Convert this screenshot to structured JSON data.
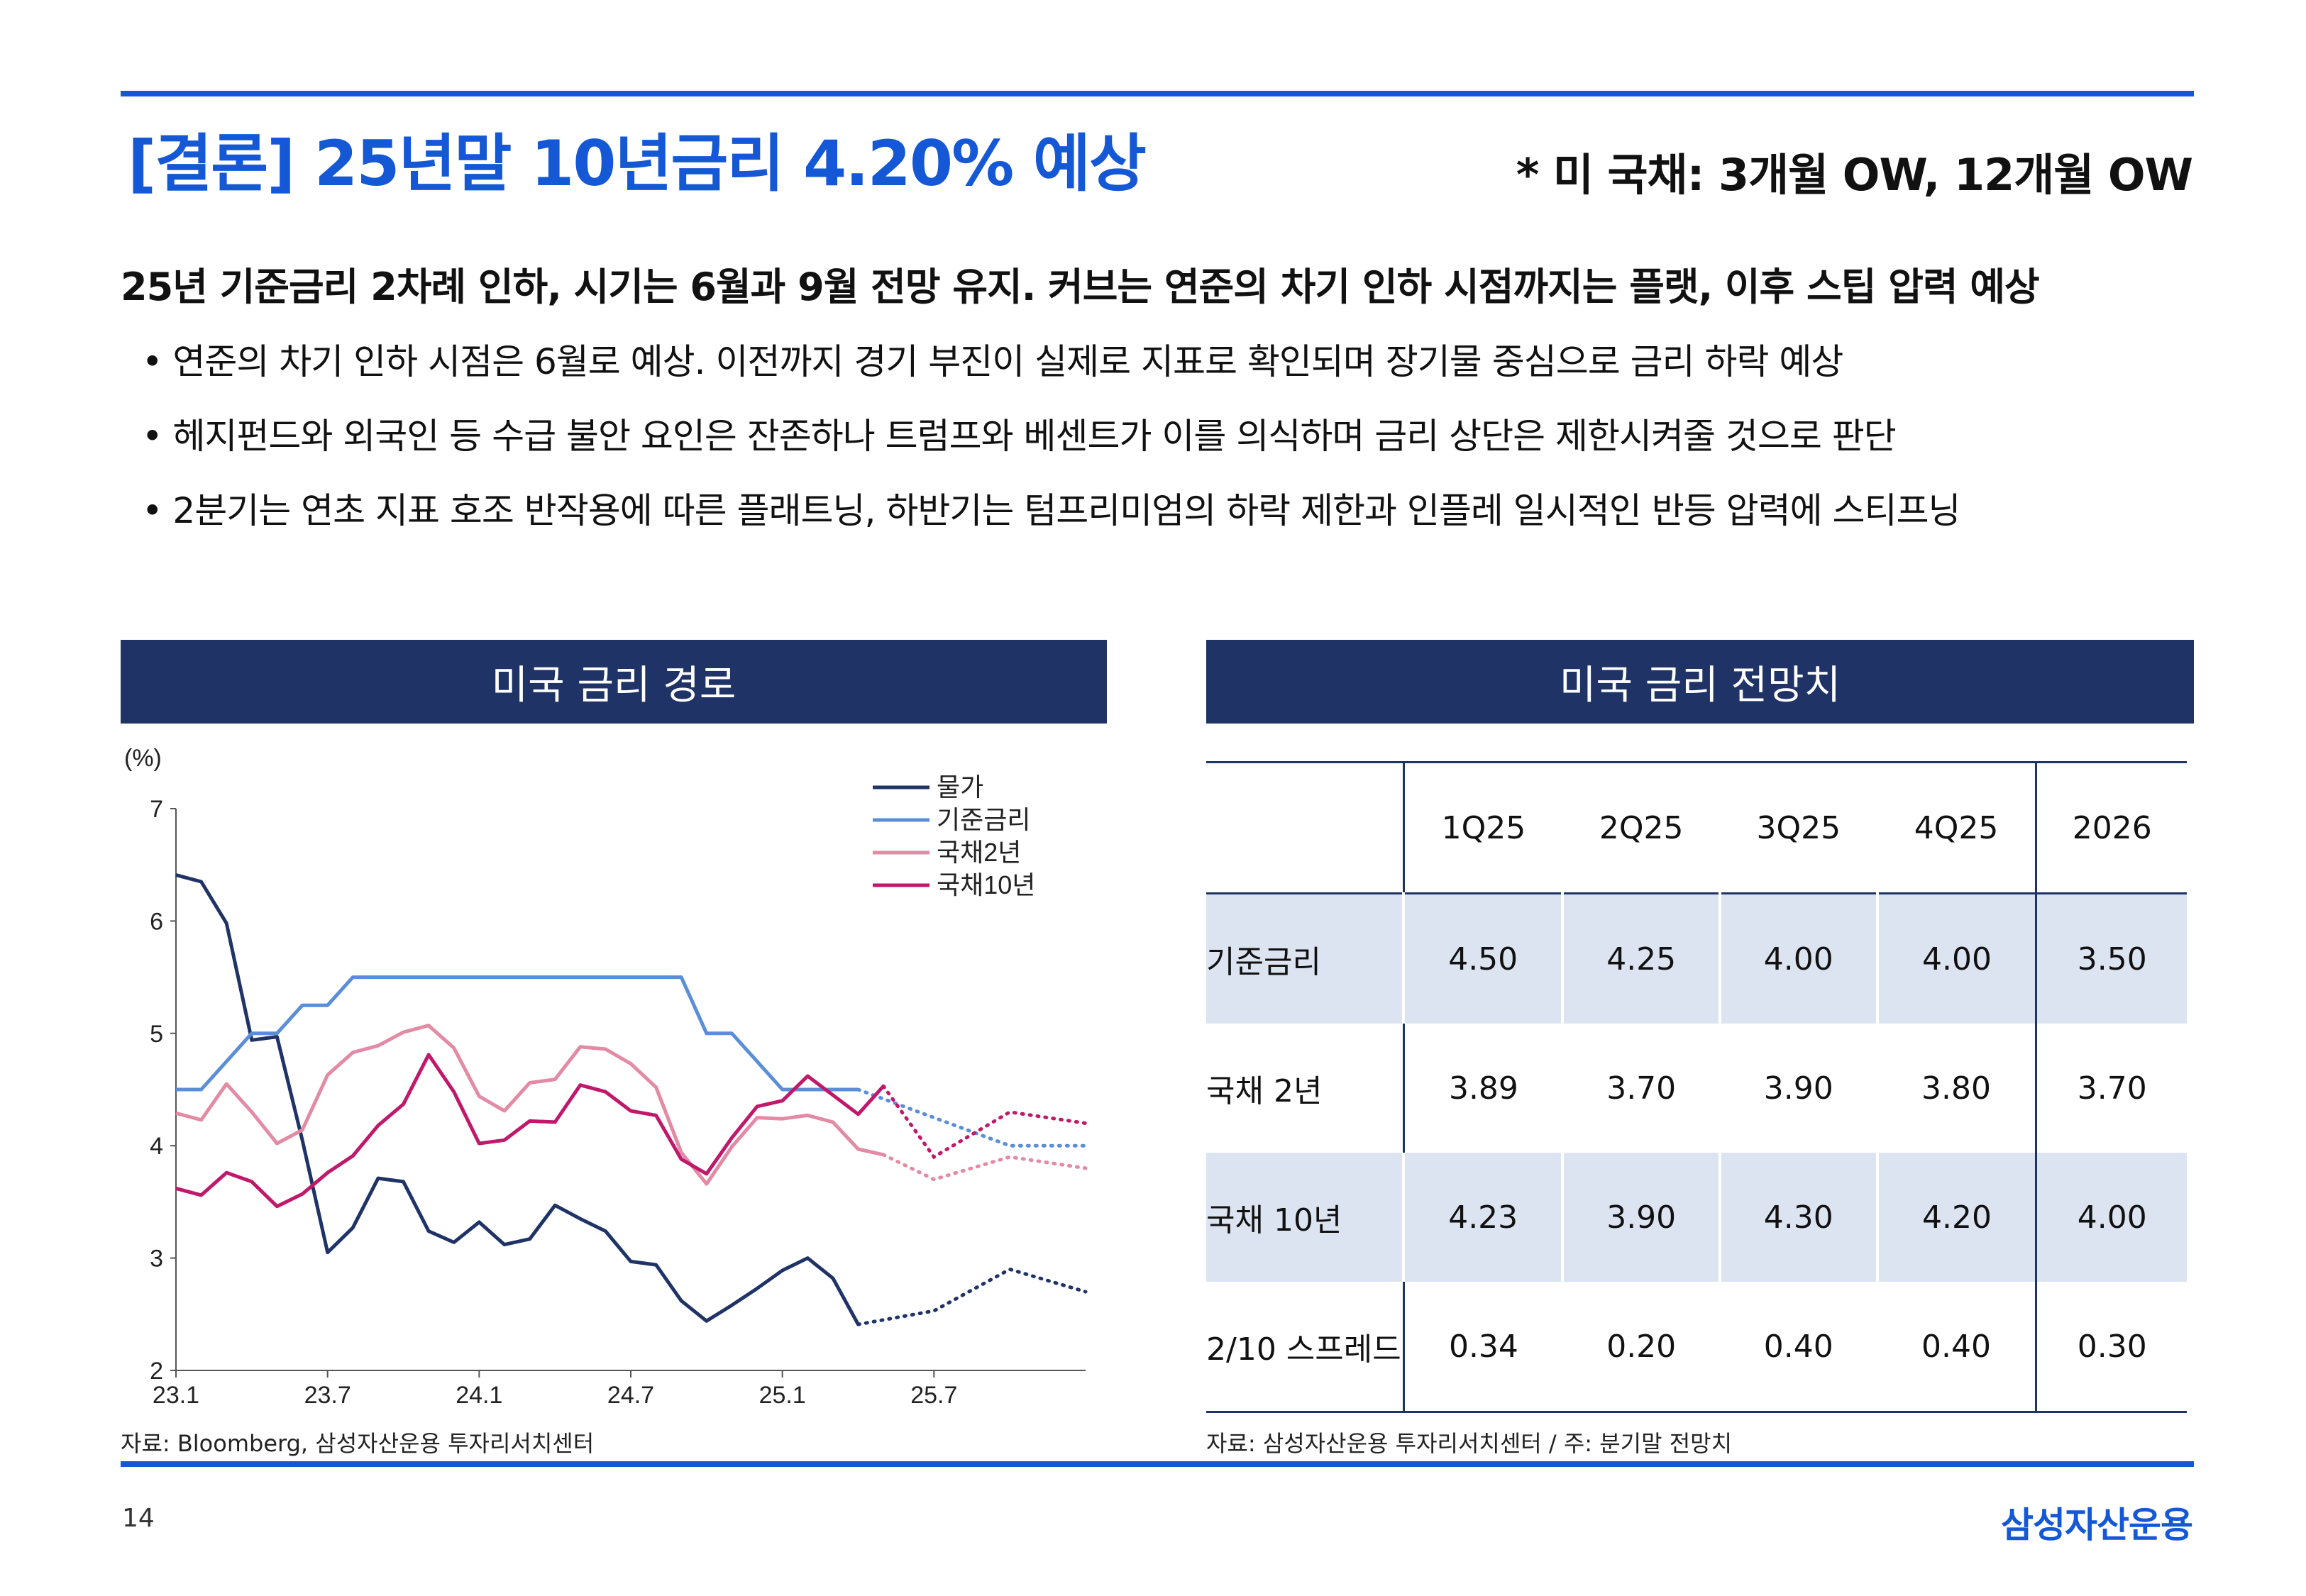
{
  "header": {
    "title": "[결론] 25년말 10년금리 4.20% 예상",
    "rating": "* 미 국채: 3개월 OW, 12개월 OW"
  },
  "subhead": "25년 기준금리 2차례 인하, 시기는 6월과 9월 전망 유지. 커브는 연준의 차기 인하 시점까지는 플랫, 이후 스팁 압력 예상",
  "bullets": [
    "• 연준의 차기 인하 시점은 6월로 예상. 이전까지 경기 부진이 실제로 지표로 확인되며 장기물 중심으로 금리 하락 예상",
    "• 헤지펀드와 외국인 등 수급 불안 요인은 잔존하나 트럼프와 베센트가 이를 의식하며 금리 상단은 제한시켜줄 것으로 판단",
    "• 2분기는 연초 지표 호조 반작용에 따른 플래트닝, 하반기는 텀프리미엄의 하락 제한과 인플레 일시적인 반등 압력에 스티프닝"
  ],
  "left_panel": {
    "title": "미국 금리 경로",
    "source": "자료: Bloomberg, 삼성자산운용 투자리서치센터"
  },
  "right_panel": {
    "title": "미국 금리 전망치",
    "source": "자료: 삼성자산운용 투자리서치센터 / 주: 분기말 전망치",
    "columns": [
      "1Q25",
      "2Q25",
      "3Q25",
      "4Q25",
      "2026"
    ],
    "rows": [
      {
        "label": "기준금리",
        "values": [
          "4.50",
          "4.25",
          "4.00",
          "4.00",
          "3.50"
        ]
      },
      {
        "label": "국채 2년",
        "values": [
          "3.89",
          "3.70",
          "3.90",
          "3.80",
          "3.70"
        ]
      },
      {
        "label": "국채 10년",
        "values": [
          "4.23",
          "3.90",
          "4.30",
          "4.20",
          "4.00"
        ]
      },
      {
        "label": "2/10 스프레드",
        "values": [
          "0.34",
          "0.20",
          "0.40",
          "0.40",
          "0.30"
        ]
      }
    ]
  },
  "footer": {
    "page": "14",
    "logo": "삼성자산운용"
  },
  "colors": {
    "accent": "#1558d6",
    "panel": "#1f3366",
    "cpi": "#1f3366",
    "policy": "#5b8ed8",
    "t2": "#e38aa4",
    "t10": "#c0186a"
  },
  "chart_data": {
    "type": "line",
    "ylabel": "(%)",
    "ylim": [
      2,
      7
    ],
    "yticks": [
      2,
      3,
      4,
      5,
      6,
      7
    ],
    "xlim": [
      0,
      36
    ],
    "xticks": [
      0,
      6,
      12,
      18,
      24,
      30
    ],
    "xtick_labels": [
      "23.1",
      "23.7",
      "24.1",
      "24.7",
      "25.1",
      "25.7"
    ],
    "legend_position": "top-right",
    "series": [
      {
        "name": "물가",
        "actual": [
          [
            0,
            6.41
          ],
          [
            1,
            6.35
          ],
          [
            2,
            5.98
          ],
          [
            3,
            4.94
          ],
          [
            4,
            4.97
          ],
          [
            5,
            4.05
          ],
          [
            6,
            3.05
          ],
          [
            7,
            3.27
          ],
          [
            8,
            3.71
          ],
          [
            9,
            3.68
          ],
          [
            10,
            3.24
          ],
          [
            11,
            3.14
          ],
          [
            12,
            3.32
          ],
          [
            13,
            3.12
          ],
          [
            14,
            3.17
          ],
          [
            15,
            3.47
          ],
          [
            16,
            3.35
          ],
          [
            17,
            3.24
          ],
          [
            18,
            2.97
          ],
          [
            19,
            2.94
          ],
          [
            20,
            2.62
          ],
          [
            21,
            2.44
          ],
          [
            22,
            2.58
          ],
          [
            23,
            2.73
          ],
          [
            24,
            2.89
          ],
          [
            25,
            3.0
          ],
          [
            26,
            2.82
          ],
          [
            27,
            2.41
          ]
        ],
        "forecast": [
          [
            27,
            2.41
          ],
          [
            30,
            2.53
          ],
          [
            33,
            2.9
          ],
          [
            36,
            2.7
          ]
        ]
      },
      {
        "name": "기준금리",
        "actual": [
          [
            0,
            4.5
          ],
          [
            1,
            4.5
          ],
          [
            2,
            4.75
          ],
          [
            3,
            5.0
          ],
          [
            4,
            5.0
          ],
          [
            5,
            5.25
          ],
          [
            6,
            5.25
          ],
          [
            7,
            5.5
          ],
          [
            8,
            5.5
          ],
          [
            9,
            5.5
          ],
          [
            10,
            5.5
          ],
          [
            11,
            5.5
          ],
          [
            12,
            5.5
          ],
          [
            13,
            5.5
          ],
          [
            14,
            5.5
          ],
          [
            15,
            5.5
          ],
          [
            16,
            5.5
          ],
          [
            17,
            5.5
          ],
          [
            18,
            5.5
          ],
          [
            19,
            5.5
          ],
          [
            20,
            5.5
          ],
          [
            21,
            5.0
          ],
          [
            22,
            5.0
          ],
          [
            23,
            4.75
          ],
          [
            24,
            4.5
          ],
          [
            25,
            4.5
          ],
          [
            26,
            4.5
          ],
          [
            27,
            4.5
          ]
        ],
        "forecast": [
          [
            27,
            4.5
          ],
          [
            30,
            4.25
          ],
          [
            33,
            4.0
          ],
          [
            36,
            4.0
          ]
        ]
      },
      {
        "name": "국채2년",
        "actual": [
          [
            0,
            4.29
          ],
          [
            1,
            4.23
          ],
          [
            2,
            4.55
          ],
          [
            3,
            4.3
          ],
          [
            4,
            4.02
          ],
          [
            5,
            4.14
          ],
          [
            6,
            4.63
          ],
          [
            7,
            4.83
          ],
          [
            8,
            4.89
          ],
          [
            9,
            5.01
          ],
          [
            10,
            5.07
          ],
          [
            11,
            4.87
          ],
          [
            12,
            4.44
          ],
          [
            13,
            4.31
          ],
          [
            14,
            4.56
          ],
          [
            15,
            4.59
          ],
          [
            16,
            4.88
          ],
          [
            17,
            4.86
          ],
          [
            18,
            4.73
          ],
          [
            19,
            4.52
          ],
          [
            20,
            3.94
          ],
          [
            21,
            3.66
          ],
          [
            22,
            3.99
          ],
          [
            23,
            4.25
          ],
          [
            24,
            4.24
          ],
          [
            25,
            4.27
          ],
          [
            26,
            4.21
          ],
          [
            27,
            3.97
          ],
          [
            28,
            3.92
          ]
        ],
        "forecast": [
          [
            28,
            3.92
          ],
          [
            30,
            3.7
          ],
          [
            33,
            3.9
          ],
          [
            36,
            3.8
          ]
        ]
      },
      {
        "name": "국채10년",
        "actual": [
          [
            0,
            3.62
          ],
          [
            1,
            3.56
          ],
          [
            2,
            3.76
          ],
          [
            3,
            3.68
          ],
          [
            4,
            3.46
          ],
          [
            5,
            3.57
          ],
          [
            6,
            3.76
          ],
          [
            7,
            3.91
          ],
          [
            8,
            4.18
          ],
          [
            9,
            4.37
          ],
          [
            10,
            4.81
          ],
          [
            11,
            4.48
          ],
          [
            12,
            4.02
          ],
          [
            13,
            4.05
          ],
          [
            14,
            4.22
          ],
          [
            15,
            4.21
          ],
          [
            16,
            4.54
          ],
          [
            17,
            4.48
          ],
          [
            18,
            4.31
          ],
          [
            19,
            4.27
          ],
          [
            20,
            3.88
          ],
          [
            21,
            3.75
          ],
          [
            22,
            4.07
          ],
          [
            23,
            4.35
          ],
          [
            24,
            4.4
          ],
          [
            25,
            4.62
          ],
          [
            26,
            4.45
          ],
          [
            27,
            4.28
          ],
          [
            28,
            4.53
          ]
        ],
        "forecast": [
          [
            28,
            4.53
          ],
          [
            30,
            3.9
          ],
          [
            33,
            4.3
          ],
          [
            36,
            4.2
          ]
        ]
      }
    ]
  }
}
